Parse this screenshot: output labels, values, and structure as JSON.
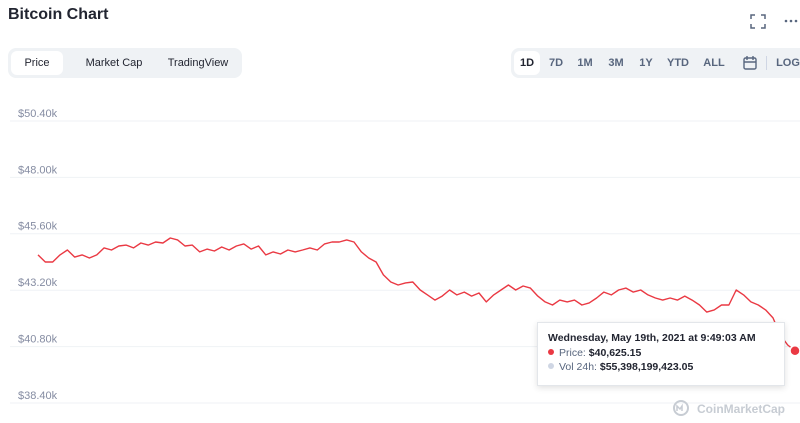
{
  "header": {
    "title": "Bitcoin Chart"
  },
  "tabs": [
    "Price",
    "Market Cap",
    "TradingView"
  ],
  "ranges": [
    "1D",
    "7D",
    "1M",
    "3M",
    "1Y",
    "YTD",
    "ALL",
    "LOG"
  ],
  "tooltip": {
    "date": "Wednesday, May 19th, 2021 at 9:49:03 AM",
    "price_label": "Price:",
    "price": "$40,625.15",
    "volume_label": "Vol 24h:",
    "volume": "$55,398,199,423.05"
  },
  "watermark": "CoinMarketCap",
  "chart_data": {
    "type": "line",
    "color": "#ea3943",
    "grid": true,
    "ylim": [
      38400,
      50400
    ],
    "yticks": [
      {
        "value": 38400,
        "label": "$38.40k"
      },
      {
        "value": 40800,
        "label": "$40.80k"
      },
      {
        "value": 43200,
        "label": "$43.20k"
      },
      {
        "value": 45600,
        "label": "$45.60k"
      },
      {
        "value": 48000,
        "label": "$48.00k"
      },
      {
        "value": 50400,
        "label": "$50.40k"
      }
    ],
    "values": [
      44700,
      44400,
      44400,
      44700,
      44910,
      44610,
      44700,
      44570,
      44700,
      45000,
      44910,
      45080,
      45120,
      45000,
      45210,
      45120,
      45250,
      45210,
      45420,
      45340,
      45080,
      45120,
      44830,
      44950,
      44870,
      45040,
      44910,
      45080,
      45170,
      44950,
      45080,
      44700,
      44830,
      44740,
      44910,
      44830,
      44910,
      45000,
      44910,
      45170,
      45250,
      45250,
      45340,
      45250,
      44830,
      44570,
      44400,
      43850,
      43550,
      43420,
      43510,
      43550,
      43210,
      43000,
      42780,
      42950,
      43210,
      43000,
      43120,
      42950,
      43080,
      42700,
      43000,
      43210,
      43420,
      43210,
      43380,
      43290,
      42950,
      42700,
      42570,
      42780,
      42700,
      42780,
      42570,
      42660,
      42870,
      43120,
      43000,
      43210,
      43290,
      43120,
      43210,
      43000,
      42870,
      42780,
      42870,
      42780,
      42950,
      42780,
      42570,
      42270,
      42360,
      42570,
      42570,
      43210,
      43000,
      42700,
      42570,
      42360,
      42020,
      41290,
      40870,
      40625
    ]
  }
}
